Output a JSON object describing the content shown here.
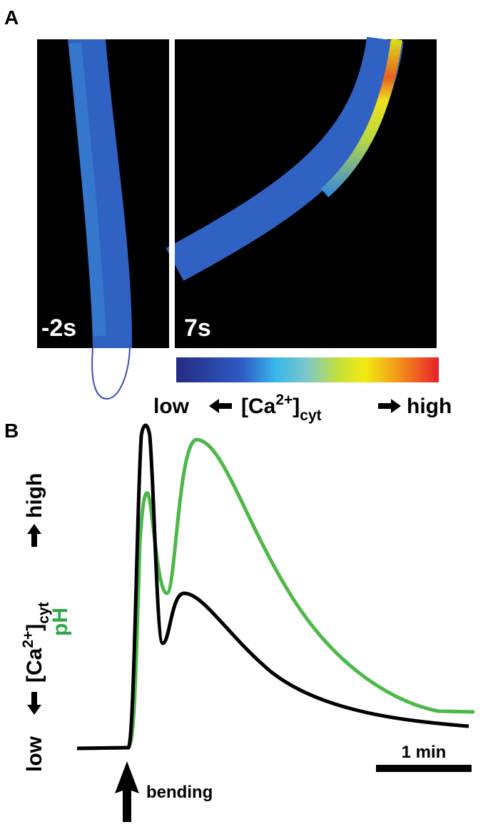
{
  "panel_a": {
    "label": "A",
    "left_time": "-2s",
    "right_time": "7s",
    "colorbar": {
      "low": "low",
      "high": "high"
    }
  },
  "ca_label": {
    "prefix": "[Ca",
    "sup": "2+",
    "close": "]",
    "sub": "cyt"
  },
  "panel_b": {
    "label": "B",
    "y_low": "low",
    "y_high": "high",
    "ph_label": "pH",
    "stimulus": "bending",
    "scale_bar": "1 min"
  }
}
